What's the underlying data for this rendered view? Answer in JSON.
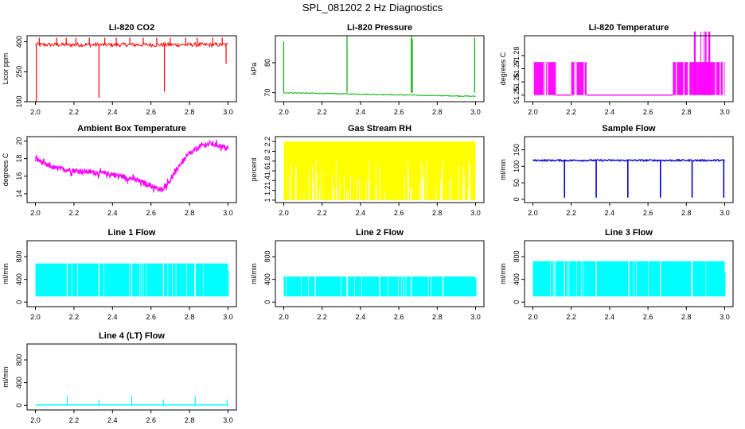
{
  "page": {
    "title": "SPL_081202  2 Hz Diagnostics"
  },
  "chart_data": [
    {
      "id": "co2",
      "type": "line",
      "title": "Li-820 CO2",
      "ylabel": "Licor ppm",
      "color": "#ff0000",
      "xlim": [
        2.0,
        3.0
      ],
      "ylim": [
        100,
        430
      ],
      "xticks": [
        "2.0",
        "2.2",
        "2.4",
        "2.6",
        "2.8",
        "3.0"
      ],
      "yticks": [
        100,
        250,
        400
      ],
      "series": [
        {
          "name": "CO2",
          "base": 385,
          "noise_low": 375,
          "noise_high": 395,
          "spikes": [
            {
              "x": 2.005,
              "y": 100
            },
            {
              "x": 2.02,
              "y": 420
            },
            {
              "x": 2.11,
              "y": 420
            },
            {
              "x": 2.16,
              "y": 420
            },
            {
              "x": 2.21,
              "y": 420
            },
            {
              "x": 2.28,
              "y": 420
            },
            {
              "x": 2.33,
              "y": 120
            },
            {
              "x": 2.36,
              "y": 420
            },
            {
              "x": 2.42,
              "y": 420
            },
            {
              "x": 2.49,
              "y": 420
            },
            {
              "x": 2.56,
              "y": 420
            },
            {
              "x": 2.63,
              "y": 420
            },
            {
              "x": 2.67,
              "y": 150
            },
            {
              "x": 2.7,
              "y": 420
            },
            {
              "x": 2.78,
              "y": 420
            },
            {
              "x": 2.84,
              "y": 420
            },
            {
              "x": 2.92,
              "y": 420
            },
            {
              "x": 2.97,
              "y": 420
            },
            {
              "x": 2.99,
              "y": 290
            }
          ]
        }
      ]
    },
    {
      "id": "pressure",
      "type": "line",
      "title": "Li-820 Pressure",
      "ylabel": "kPa",
      "color": "#00b000",
      "xlim": [
        2.0,
        3.0
      ],
      "ylim": [
        67,
        89
      ],
      "xticks": [
        "2.0",
        "2.2",
        "2.4",
        "2.6",
        "2.8",
        "3.0"
      ],
      "yticks": [
        70,
        80
      ],
      "series": [
        {
          "name": "Pressure",
          "start": 70.0,
          "end": 68.8,
          "noise": 0.3,
          "spikes": [
            {
              "x": 2.0,
              "y": 87
            },
            {
              "x": 2.33,
              "y": 89
            },
            {
              "x": 2.665,
              "y": 89
            },
            {
              "x": 2.67,
              "y": 88
            },
            {
              "x": 2.995,
              "y": 88.5
            }
          ]
        }
      ]
    },
    {
      "id": "temperature",
      "type": "line",
      "title": "Li-820 Temperature",
      "ylabel": "degrees C",
      "color": "#ff00ff",
      "xlim": [
        2.0,
        3.0
      ],
      "ylim": [
        51.245,
        51.295
      ],
      "xticks": [
        "2.0",
        "2.2",
        "2.4",
        "2.6",
        "2.8",
        "3.0"
      ],
      "yticks": [
        51.25,
        51.26,
        51.27,
        51.28
      ],
      "series": [
        {
          "name": "Temperature",
          "levels": [
            51.25,
            51.275,
            51.3
          ],
          "segments": [
            {
              "from": 2.0,
              "to": 2.12,
              "level": "toggle"
            },
            {
              "from": 2.12,
              "to": 2.2,
              "level": "low"
            },
            {
              "from": 2.2,
              "to": 2.28,
              "level": "toggle"
            },
            {
              "from": 2.28,
              "to": 2.73,
              "level": "low"
            },
            {
              "from": 2.73,
              "to": 2.83,
              "level": "toggle"
            },
            {
              "from": 2.83,
              "to": 2.94,
              "level": "toggle_high"
            },
            {
              "from": 2.94,
              "to": 3.0,
              "level": "toggle"
            }
          ]
        }
      ]
    },
    {
      "id": "ambient",
      "type": "line",
      "title": "Ambient Box Temperature",
      "ylabel": "degrees C",
      "color": "#ff00ff",
      "xlim": [
        2.0,
        3.0
      ],
      "ylim": [
        13,
        20.5
      ],
      "xticks": [
        "2.0",
        "2.2",
        "2.4",
        "2.6",
        "2.8",
        "3.0"
      ],
      "yticks": [
        14,
        16,
        18,
        20
      ],
      "series": [
        {
          "name": "Ambient Box Temperature",
          "points": [
            [
              2.0,
              18.1
            ],
            [
              2.05,
              17.4
            ],
            [
              2.1,
              17.0
            ],
            [
              2.2,
              16.7
            ],
            [
              2.3,
              16.5
            ],
            [
              2.4,
              16.3
            ],
            [
              2.5,
              15.8
            ],
            [
              2.55,
              15.4
            ],
            [
              2.6,
              15.0
            ],
            [
              2.65,
              14.4
            ],
            [
              2.7,
              15.6
            ],
            [
              2.75,
              17.4
            ],
            [
              2.8,
              18.6
            ],
            [
              2.85,
              19.4
            ],
            [
              2.9,
              19.8
            ],
            [
              2.95,
              19.6
            ],
            [
              3.0,
              19.2
            ]
          ],
          "noise": 0.6
        }
      ]
    },
    {
      "id": "rh",
      "type": "line",
      "title": "Gas Stream RH",
      "ylabel": "percent",
      "color": "#ffff00",
      "xlim": [
        2.0,
        3.0
      ],
      "ylim": [
        0.95,
        2.3
      ],
      "xticks": [
        "2.0",
        "2.2",
        "2.4",
        "2.6",
        "2.8",
        "3.0"
      ],
      "yticks": [
        1.0,
        1.2,
        1.4,
        1.6,
        1.8,
        2.0,
        2.2
      ],
      "series": [
        {
          "name": "RH",
          "high": 2.2,
          "low": 1.0
        }
      ]
    },
    {
      "id": "sample",
      "type": "line",
      "title": "Sample Flow",
      "ylabel": "ml/min",
      "color": "#0000cc",
      "xlim": [
        2.0,
        3.0
      ],
      "ylim": [
        -10,
        190
      ],
      "xticks": [
        "2.0",
        "2.2",
        "2.4",
        "2.6",
        "2.8",
        "3.0"
      ],
      "yticks": [
        0,
        50,
        100,
        150
      ],
      "series": [
        {
          "name": "Sample Flow",
          "base": 118,
          "noise": 5,
          "dips": [
            2.165,
            2.33,
            2.495,
            2.665,
            2.83,
            2.995
          ],
          "dip_value": 5
        }
      ]
    },
    {
      "id": "line1",
      "type": "line",
      "title": "Line 1 Flow",
      "ylabel": "ml/min",
      "color": "#00ffff",
      "xlim": [
        2.0,
        3.0
      ],
      "ylim": [
        -80,
        1080
      ],
      "xticks": [
        "2.0",
        "2.2",
        "2.4",
        "2.6",
        "2.8",
        "3.0"
      ],
      "yticks": [
        0,
        400,
        800
      ],
      "series": [
        {
          "name": "Line 1 Flow",
          "high": 680,
          "low": 100,
          "end_value": 560,
          "gaps": [
            2.165,
            2.33,
            2.5,
            2.665,
            2.83
          ]
        }
      ]
    },
    {
      "id": "line2",
      "type": "line",
      "title": "Line 2 Flow",
      "ylabel": "ml/min",
      "color": "#00ffff",
      "xlim": [
        2.0,
        3.0
      ],
      "ylim": [
        -80,
        1080
      ],
      "xticks": [
        "2.0",
        "2.2",
        "2.4",
        "2.6",
        "2.8",
        "3.0"
      ],
      "yticks": [
        0,
        400,
        800
      ],
      "series": [
        {
          "name": "Line 2 Flow",
          "high": 450,
          "low": 100,
          "end_value": 420,
          "gaps": [
            2.165,
            2.33,
            2.5,
            2.665,
            2.83
          ]
        }
      ]
    },
    {
      "id": "line3",
      "type": "line",
      "title": "Line 3 Flow",
      "ylabel": "ml/min",
      "color": "#00ffff",
      "xlim": [
        2.0,
        3.0
      ],
      "ylim": [
        -80,
        1080
      ],
      "xticks": [
        "2.0",
        "2.2",
        "2.4",
        "2.6",
        "2.8",
        "3.0"
      ],
      "yticks": [
        0,
        400,
        800
      ],
      "series": [
        {
          "name": "Line 3 Flow",
          "high": 720,
          "low": 100,
          "end_value": 520,
          "gaps": [
            2.165,
            2.33,
            2.5,
            2.665,
            2.83
          ]
        }
      ]
    },
    {
      "id": "line4",
      "type": "line",
      "title": "Line 4 (LT) Flow",
      "ylabel": "ml/min",
      "color": "#00ffff",
      "xlim": [
        2.0,
        3.0
      ],
      "ylim": [
        -80,
        1080
      ],
      "xticks": [
        "2.0",
        "2.2",
        "2.4",
        "2.6",
        "2.8",
        "3.0"
      ],
      "yticks": [
        0,
        400,
        800
      ],
      "series": [
        {
          "name": "Line 4 (LT) Flow",
          "base": 8,
          "spikes": [
            {
              "x": 2.165,
              "y": 160
            },
            {
              "x": 2.33,
              "y": 100
            },
            {
              "x": 2.5,
              "y": 170
            },
            {
              "x": 2.665,
              "y": 100
            },
            {
              "x": 2.83,
              "y": 160
            },
            {
              "x": 2.995,
              "y": 100
            }
          ]
        }
      ]
    }
  ]
}
